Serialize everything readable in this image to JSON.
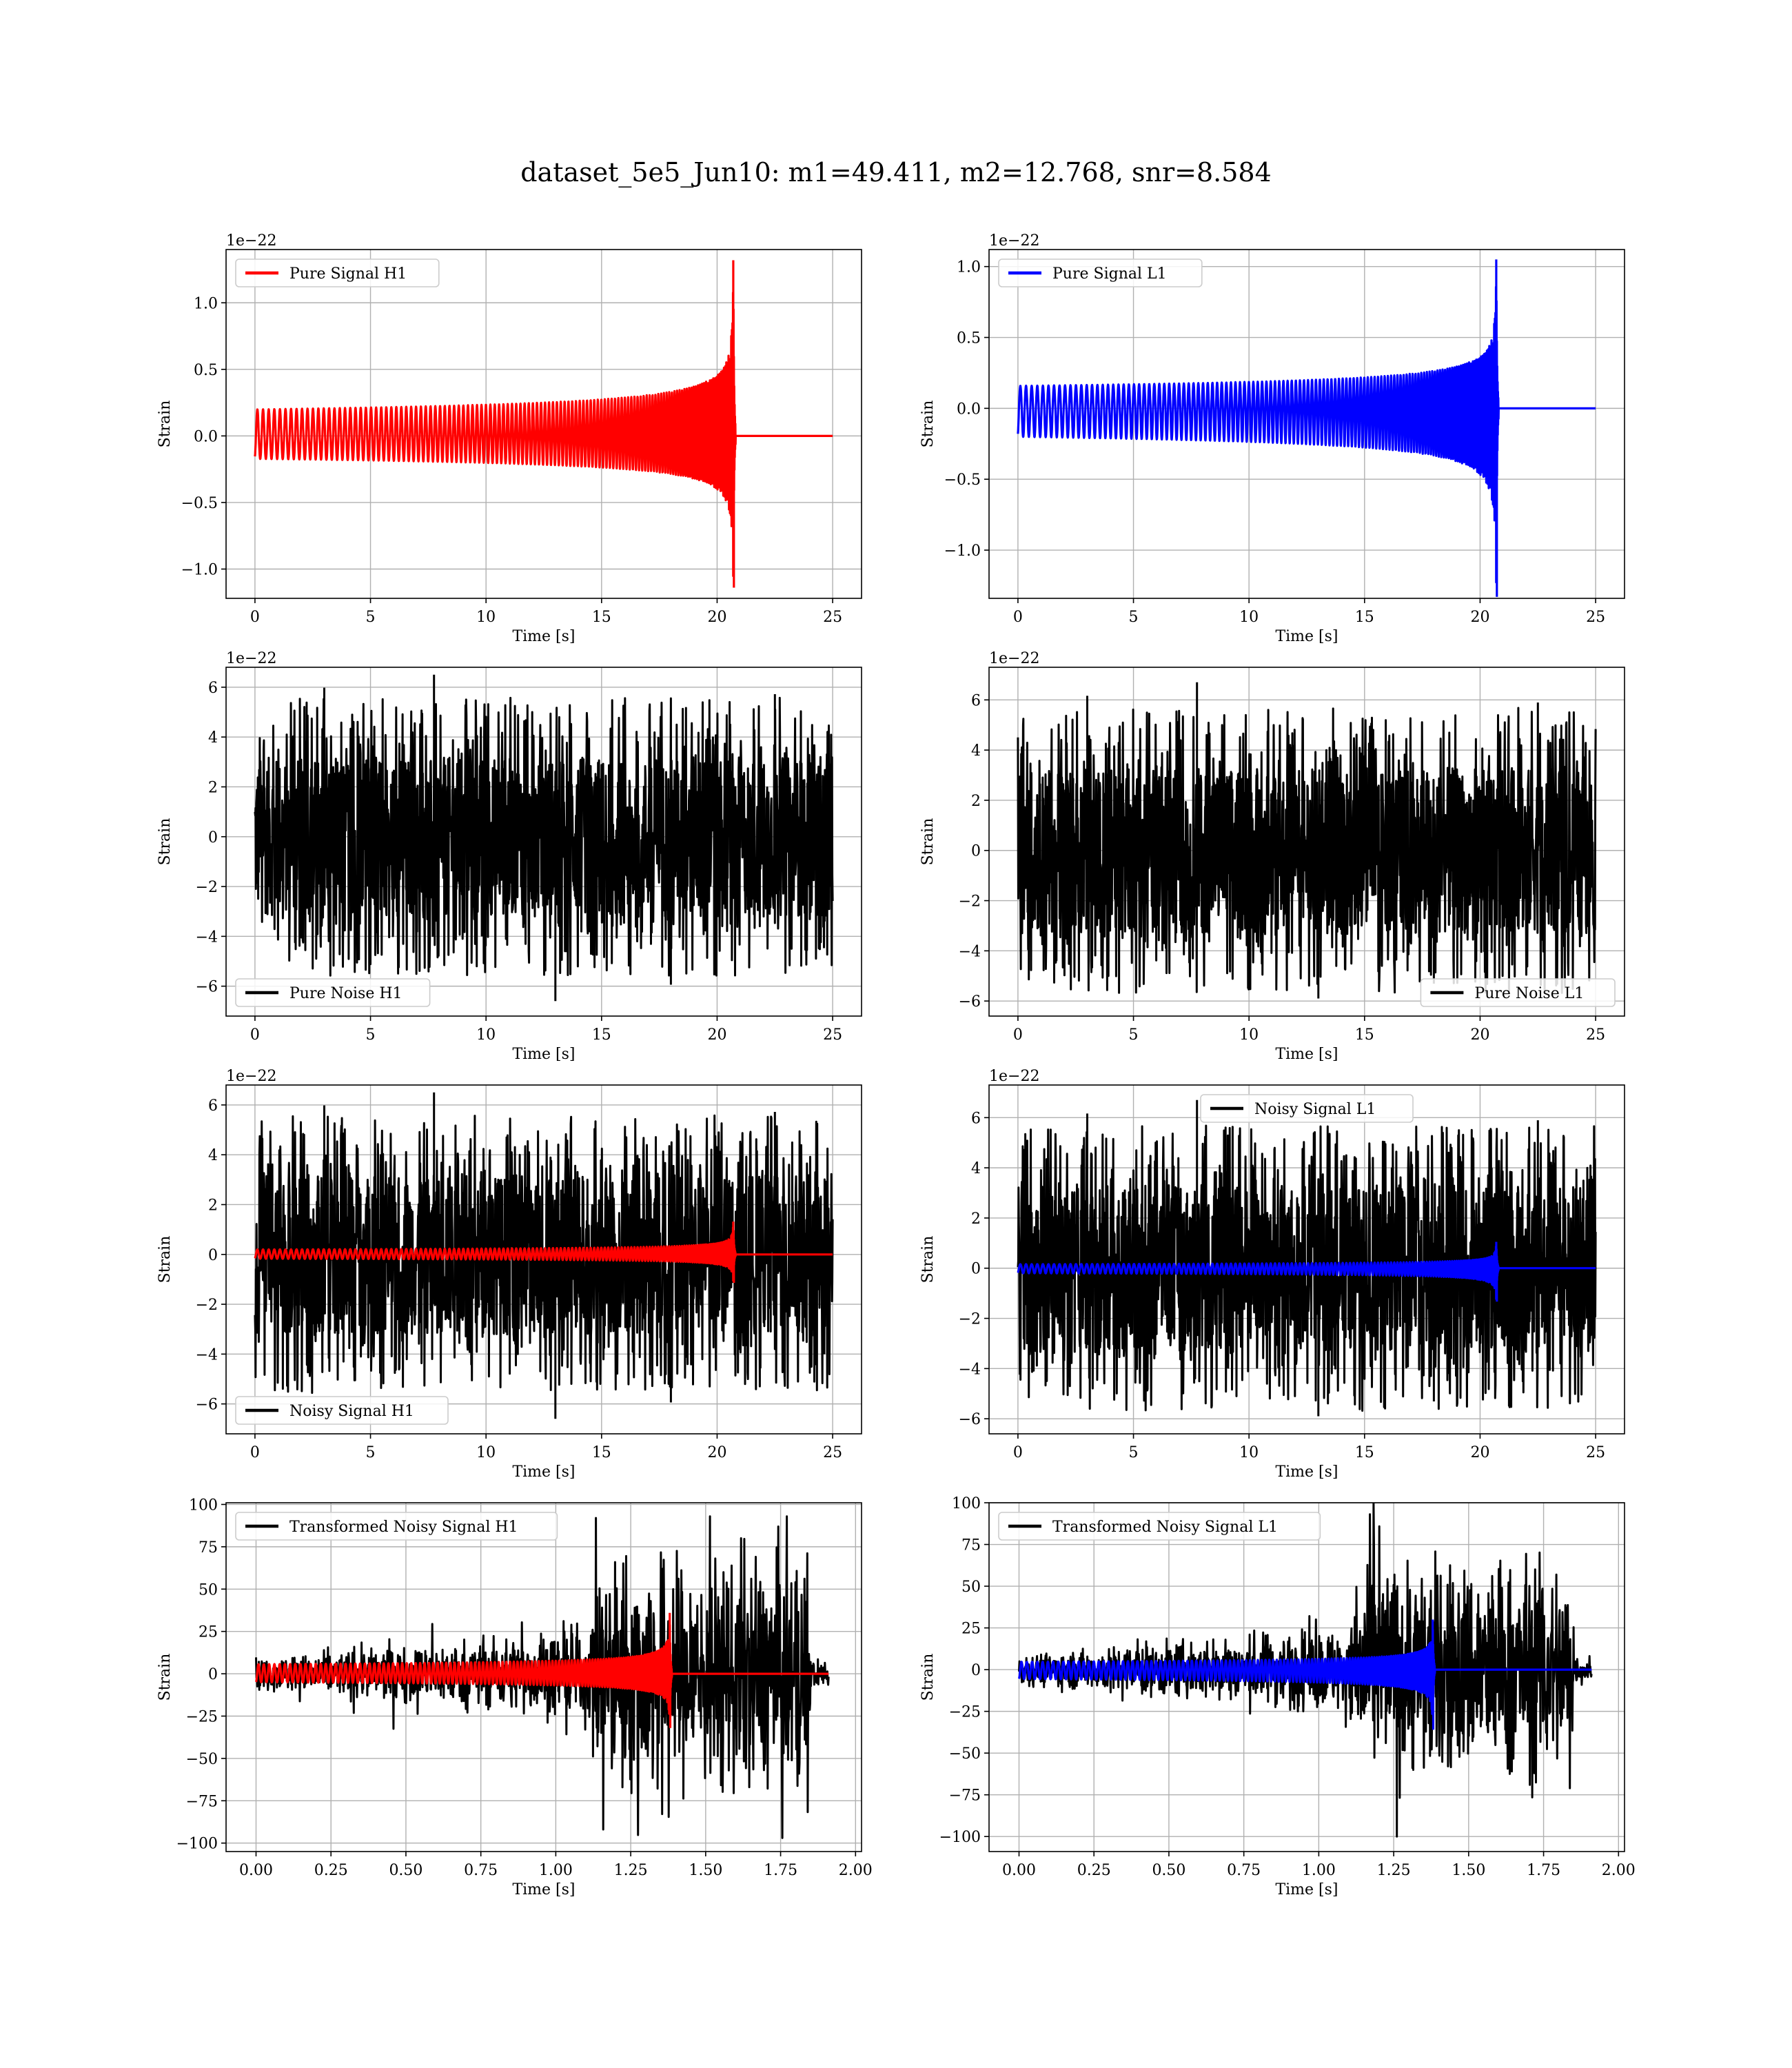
{
  "suptitle": "dataset_5e5_Jun10: m1=49.411, m2=12.768, snr=8.584",
  "colors": {
    "h1_signal": "#ff0000",
    "l1_signal": "#0000ff",
    "noise": "#000000",
    "grid": "#b0b0b0"
  },
  "chart_data": [
    {
      "id": "pure-signal-h1",
      "type": "line",
      "detector": "H1",
      "xlabel": "Time [s]",
      "ylabel": "Strain",
      "offset_text": "1e−22",
      "xlim": [
        -1.25,
        26.25
      ],
      "ylim": [
        -1.22,
        1.4
      ],
      "xticks": [
        0,
        5,
        10,
        15,
        20,
        25
      ],
      "xtick_labels": [
        "0",
        "5",
        "10",
        "15",
        "20",
        "25"
      ],
      "yticks": [
        -1.0,
        -0.5,
        0.0,
        0.5,
        1.0
      ],
      "ytick_labels": [
        "−1.0",
        "−0.5",
        "0.0",
        "0.5",
        "1.0"
      ],
      "grid": true,
      "legend_loc": "upper-left",
      "series": [
        {
          "name": "Pure Signal H1",
          "color": "#ff0000",
          "kind": "chirp",
          "x_range": [
            0,
            25
          ],
          "merger_t": 20.7,
          "peak_pos": 1.32,
          "peak_neg": -1.14
        }
      ]
    },
    {
      "id": "pure-signal-l1",
      "type": "line",
      "detector": "L1",
      "xlabel": "Time [s]",
      "ylabel": "Strain",
      "offset_text": "1e−22",
      "xlim": [
        -1.25,
        26.25
      ],
      "ylim": [
        -1.34,
        1.12
      ],
      "xticks": [
        0,
        5,
        10,
        15,
        20,
        25
      ],
      "xtick_labels": [
        "0",
        "5",
        "10",
        "15",
        "20",
        "25"
      ],
      "yticks": [
        -1.0,
        -0.5,
        0.0,
        0.5,
        1.0
      ],
      "ytick_labels": [
        "−1.0",
        "−0.5",
        "0.0",
        "0.5",
        "1.0"
      ],
      "grid": true,
      "legend_loc": "upper-left",
      "series": [
        {
          "name": "Pure Signal L1",
          "color": "#0000ff",
          "kind": "chirp",
          "x_range": [
            0,
            25
          ],
          "merger_t": 20.7,
          "peak_pos": 1.05,
          "peak_neg": -1.33
        }
      ]
    },
    {
      "id": "pure-noise-h1",
      "type": "line",
      "detector": "H1",
      "xlabel": "Time [s]",
      "ylabel": "Strain",
      "offset_text": "1e−22",
      "xlim": [
        -1.25,
        26.25
      ],
      "ylim": [
        -7.2,
        6.8
      ],
      "xticks": [
        0,
        5,
        10,
        15,
        20,
        25
      ],
      "xtick_labels": [
        "0",
        "5",
        "10",
        "15",
        "20",
        "25"
      ],
      "yticks": [
        -6,
        -4,
        -2,
        0,
        2,
        4,
        6
      ],
      "ytick_labels": [
        "−6",
        "−4",
        "−2",
        "0",
        "2",
        "4",
        "6"
      ],
      "grid": true,
      "legend_loc": "lower-left",
      "series": [
        {
          "name": "Pure Noise H1",
          "color": "#000000",
          "kind": "noise",
          "x_range": [
            0,
            25
          ],
          "core": 3.2,
          "max_pos": 6.5,
          "max_neg": -6.6
        }
      ]
    },
    {
      "id": "pure-noise-l1",
      "type": "line",
      "detector": "L1",
      "xlabel": "Time [s]",
      "ylabel": "Strain",
      "offset_text": "1e−22",
      "xlim": [
        -1.25,
        26.25
      ],
      "ylim": [
        -6.6,
        7.3
      ],
      "xticks": [
        0,
        5,
        10,
        15,
        20,
        25
      ],
      "xtick_labels": [
        "0",
        "5",
        "10",
        "15",
        "20",
        "25"
      ],
      "yticks": [
        -6,
        -4,
        -2,
        0,
        2,
        4,
        6
      ],
      "ytick_labels": [
        "−6",
        "−4",
        "−2",
        "0",
        "2",
        "4",
        "6"
      ],
      "grid": true,
      "legend_loc": "lower-right",
      "series": [
        {
          "name": "Pure Noise L1",
          "color": "#000000",
          "kind": "noise",
          "x_range": [
            0,
            25
          ],
          "core": 3.3,
          "max_pos": 6.7,
          "max_neg": -5.9
        }
      ]
    },
    {
      "id": "noisy-signal-h1",
      "type": "line",
      "detector": "H1",
      "xlabel": "Time [s]",
      "ylabel": "Strain",
      "offset_text": "1e−22",
      "xlim": [
        -1.25,
        26.25
      ],
      "ylim": [
        -7.2,
        6.8
      ],
      "xticks": [
        0,
        5,
        10,
        15,
        20,
        25
      ],
      "xtick_labels": [
        "0",
        "5",
        "10",
        "15",
        "20",
        "25"
      ],
      "yticks": [
        -6,
        -4,
        -2,
        0,
        2,
        4,
        6
      ],
      "ytick_labels": [
        "−6",
        "−4",
        "−2",
        "0",
        "2",
        "4",
        "6"
      ],
      "grid": true,
      "legend_loc": "lower-left",
      "series": [
        {
          "name": "Noisy Signal H1",
          "color": "#000000",
          "kind": "noise",
          "x_range": [
            0,
            25
          ],
          "core": 3.2,
          "max_pos": 6.5,
          "max_neg": -6.6
        },
        {
          "name": "",
          "color": "#ff0000",
          "kind": "chirp",
          "x_range": [
            0,
            25
          ],
          "merger_t": 20.7,
          "peak_pos": 1.32,
          "peak_neg": -1.14
        }
      ]
    },
    {
      "id": "noisy-signal-l1",
      "type": "line",
      "detector": "L1",
      "xlabel": "Time [s]",
      "ylabel": "Strain",
      "offset_text": "1e−22",
      "xlim": [
        -1.25,
        26.25
      ],
      "ylim": [
        -6.6,
        7.3
      ],
      "xticks": [
        0,
        5,
        10,
        15,
        20,
        25
      ],
      "xtick_labels": [
        "0",
        "5",
        "10",
        "15",
        "20",
        "25"
      ],
      "yticks": [
        -6,
        -4,
        -2,
        0,
        2,
        4,
        6
      ],
      "ytick_labels": [
        "−6",
        "−4",
        "−2",
        "0",
        "2",
        "4",
        "6"
      ],
      "grid": true,
      "legend_loc": "upper-center",
      "series": [
        {
          "name": "Noisy Signal L1",
          "color": "#000000",
          "kind": "noise",
          "x_range": [
            0,
            25
          ],
          "core": 3.3,
          "max_pos": 6.7,
          "max_neg": -5.9
        },
        {
          "name": "",
          "color": "#0000ff",
          "kind": "chirp",
          "x_range": [
            0,
            25
          ],
          "merger_t": 20.7,
          "peak_pos": 1.05,
          "peak_neg": -1.33
        }
      ]
    },
    {
      "id": "transformed-noisy-signal-h1",
      "type": "line",
      "detector": "H1",
      "xlabel": "Time [s]",
      "ylabel": "Strain",
      "offset_text": "",
      "xlim": [
        -0.1,
        2.02
      ],
      "ylim": [
        -105,
        101
      ],
      "xticks": [
        0.0,
        0.25,
        0.5,
        0.75,
        1.0,
        1.25,
        1.5,
        1.75,
        2.0
      ],
      "xtick_labels": [
        "0.00",
        "0.25",
        "0.50",
        "0.75",
        "1.00",
        "1.25",
        "1.50",
        "1.75",
        "2.00"
      ],
      "yticks": [
        -100,
        -75,
        -50,
        -25,
        0,
        25,
        50,
        75,
        100
      ],
      "ytick_labels": [
        "−100",
        "−75",
        "−50",
        "−25",
        "0",
        "25",
        "50",
        "75",
        "100"
      ],
      "grid": true,
      "legend_loc": "upper-left",
      "series": [
        {
          "name": "Transformed Noisy Signal H1",
          "color": "#000000",
          "kind": "whitened",
          "x_range": [
            0,
            1.91
          ],
          "core_early": 5,
          "core_late": 40,
          "jump_t": 1.12,
          "max_pos": 93,
          "max_neg": -97
        },
        {
          "name": "",
          "color": "#ff0000",
          "kind": "chirp",
          "x_range": [
            0,
            1.91
          ],
          "merger_t": 1.38,
          "peak_pos": 36,
          "peak_neg": -32
        }
      ]
    },
    {
      "id": "transformed-noisy-signal-l1",
      "type": "line",
      "detector": "L1",
      "xlabel": "Time [s]",
      "ylabel": "Strain",
      "offset_text": "",
      "xlim": [
        -0.1,
        2.02
      ],
      "ylim": [
        -109,
        100
      ],
      "xticks": [
        0.0,
        0.25,
        0.5,
        0.75,
        1.0,
        1.25,
        1.5,
        1.75,
        2.0
      ],
      "xtick_labels": [
        "0.00",
        "0.25",
        "0.50",
        "0.75",
        "1.00",
        "1.25",
        "1.50",
        "1.75",
        "2.00"
      ],
      "yticks": [
        -100,
        -75,
        -50,
        -25,
        0,
        25,
        50,
        75,
        100
      ],
      "ytick_labels": [
        "−100",
        "−75",
        "−50",
        "−25",
        "0",
        "25",
        "50",
        "75",
        "100"
      ],
      "grid": true,
      "legend_loc": "upper-left",
      "series": [
        {
          "name": "Transformed Noisy Signal L1",
          "color": "#000000",
          "kind": "whitened",
          "x_range": [
            0,
            1.91
          ],
          "core_early": 5,
          "core_late": 38,
          "jump_t": 1.12,
          "max_pos": 100,
          "max_neg": -100
        },
        {
          "name": "",
          "color": "#0000ff",
          "kind": "chirp",
          "x_range": [
            0,
            1.91
          ],
          "merger_t": 1.38,
          "peak_pos": 30,
          "peak_neg": -36
        }
      ]
    }
  ]
}
